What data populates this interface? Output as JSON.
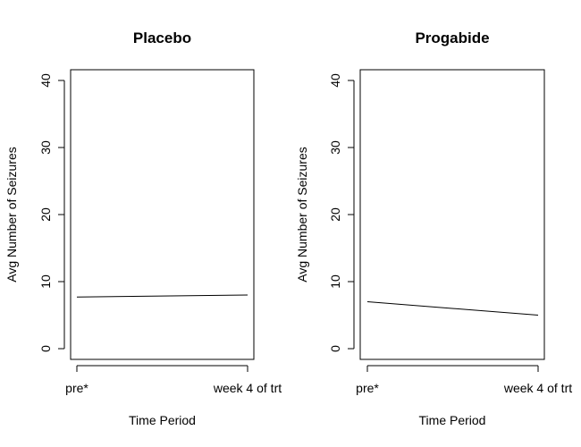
{
  "chart_data": [
    {
      "type": "line",
      "title": "Placebo",
      "xlabel": "Time Period",
      "ylabel": "Avg Number of Seizures",
      "categories": [
        "pre*",
        "week 4 of trt"
      ],
      "series": [
        {
          "values": [
            7.7,
            8.0
          ]
        }
      ],
      "ylim": [
        0,
        40
      ],
      "yticks": [
        0,
        10,
        20,
        30,
        40
      ],
      "grid": false
    },
    {
      "type": "line",
      "title": "Progabide",
      "xlabel": "Time Period",
      "ylabel": "Avg Number of Seizures",
      "categories": [
        "pre*",
        "week 4 of trt"
      ],
      "series": [
        {
          "values": [
            7.0,
            5.0
          ]
        }
      ],
      "ylim": [
        0,
        40
      ],
      "yticks": [
        0,
        10,
        20,
        30,
        40
      ],
      "grid": false
    }
  ]
}
